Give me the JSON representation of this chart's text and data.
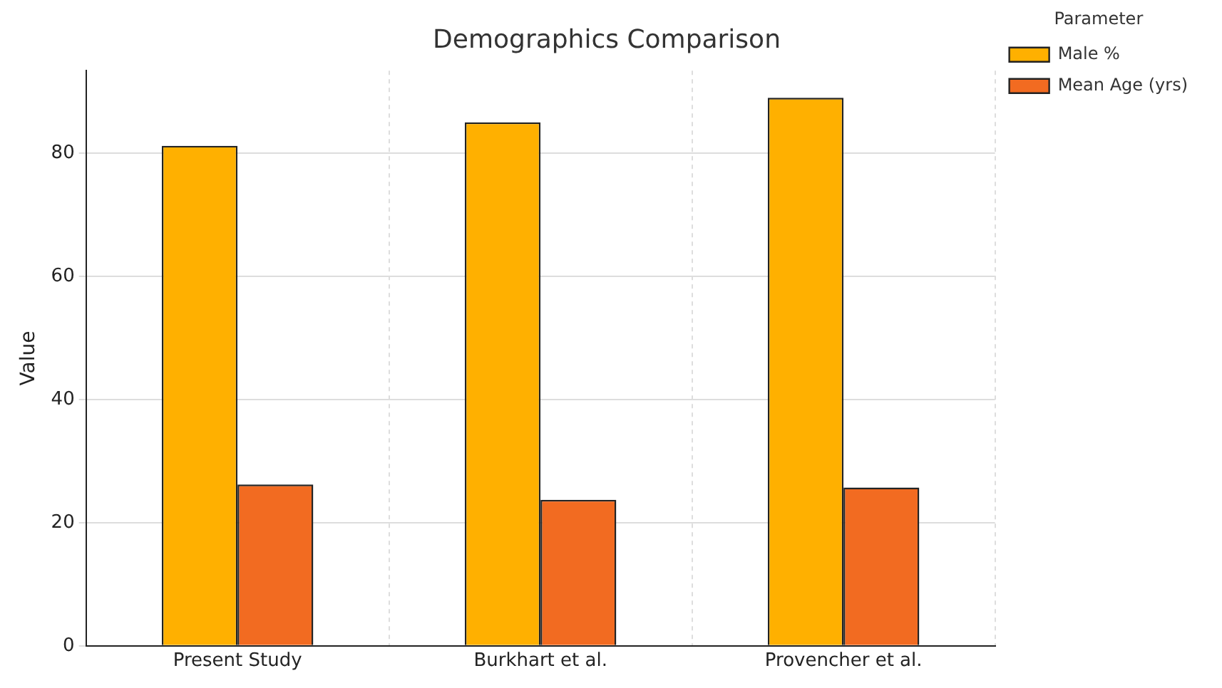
{
  "chart_data": {
    "type": "bar",
    "title": "Demographics Comparison",
    "ylabel": "Value",
    "legend_title": "Parameter",
    "categories": [
      "Present Study",
      "Burkhart et al.",
      "Provencher et al."
    ],
    "series": [
      {
        "name": "Male %",
        "color": "#ffb000",
        "values": [
          81.2,
          85,
          89
        ]
      },
      {
        "name": "Mean Age (yrs)",
        "color": "#f26b21",
        "values": [
          26.2,
          23.7,
          25.7
        ]
      }
    ],
    "ylim": [
      0,
      93.4
    ],
    "yticks": [
      0,
      20,
      40,
      60,
      80
    ],
    "grid": true,
    "legend": "top right"
  }
}
